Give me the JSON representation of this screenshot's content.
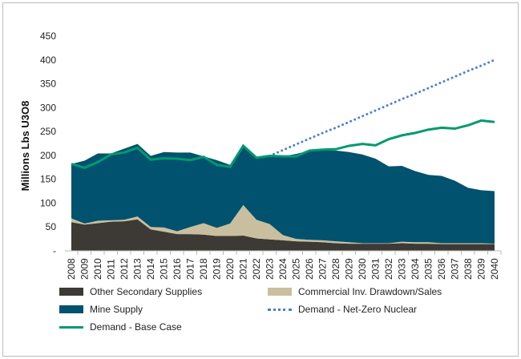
{
  "chart_data": {
    "type": "area",
    "title": "",
    "ylabel": "Millions Lbs U3O8",
    "ylim": [
      0,
      450
    ],
    "yticks": [
      "-",
      "50",
      "100",
      "150",
      "200",
      "250",
      "300",
      "350",
      "400",
      "450"
    ],
    "x": [
      2008,
      2009,
      2010,
      2011,
      2012,
      2013,
      2014,
      2015,
      2016,
      2017,
      2018,
      2019,
      2020,
      2021,
      2022,
      2023,
      2024,
      2025,
      2026,
      2027,
      2028,
      2029,
      2030,
      2031,
      2032,
      2033,
      2034,
      2035,
      2036,
      2037,
      2038,
      2039,
      2040
    ],
    "stacked_series": [
      {
        "name": "Other Secondary Supplies",
        "color": "#3d3935",
        "values": [
          60,
          55,
          58,
          61,
          62,
          66,
          45,
          40,
          35,
          35,
          34,
          31,
          31,
          32,
          26,
          24,
          22,
          20,
          19,
          18,
          16,
          15,
          15,
          15,
          15,
          16,
          15,
          15,
          14,
          14,
          14,
          14,
          14
        ]
      },
      {
        "name": "Commercial Inv. Drawdown/Sales",
        "color": "#c9bf9e",
        "values": [
          8,
          2,
          5,
          3,
          3,
          6,
          5,
          9,
          6,
          15,
          24,
          17,
          26,
          64,
          39,
          32,
          11,
          5,
          4,
          4,
          4,
          3,
          1,
          1,
          1,
          3,
          3,
          3,
          2,
          2,
          2,
          2,
          1
        ]
      },
      {
        "name": "Mine Supply",
        "color": "#00526e",
        "values": [
          114,
          132,
          141,
          140,
          149,
          152,
          149,
          158,
          165,
          156,
          140,
          142,
          123,
          122,
          131,
          143,
          165,
          178,
          187,
          189,
          190,
          189,
          186,
          177,
          161,
          159,
          149,
          141,
          141,
          131,
          116,
          111,
          110
        ]
      }
    ],
    "line_series": [
      {
        "name": "Demand - Net-Zero Nuclear",
        "color": "#4a7fd4",
        "style": "dotted",
        "start_year": 2023,
        "values": [
          199,
          211,
          223,
          235,
          247,
          258,
          270,
          282,
          294,
          306,
          318,
          329,
          341,
          353,
          365,
          377,
          388,
          400
        ]
      },
      {
        "name": "Demand - Base Case",
        "color": "#009a6e",
        "style": "solid",
        "values": [
          182,
          174,
          186,
          202,
          206,
          216,
          191,
          194,
          193,
          190,
          197,
          180,
          176,
          220,
          195,
          199,
          198,
          198,
          210,
          212,
          213,
          220,
          224,
          221,
          234,
          242,
          247,
          254,
          258,
          256,
          263,
          273,
          270
        ]
      }
    ],
    "legend": {
      "placement": "bottom",
      "items": [
        "Other Secondary Supplies",
        "Commercial Inv. Drawdown/Sales",
        "Mine Supply",
        "Demand - Net-Zero Nuclear",
        "Demand - Base Case"
      ]
    }
  }
}
